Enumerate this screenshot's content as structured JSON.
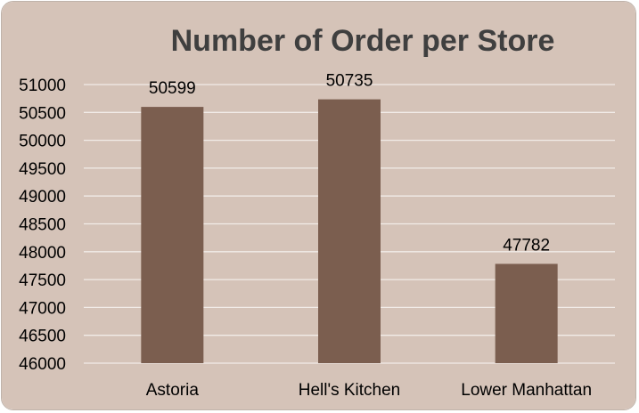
{
  "colors": {
    "background": "#d5c3b8",
    "bar": "#7b5e4f",
    "gridline": "#f2ece8",
    "text": "#000000",
    "title": "#3f3f3f"
  },
  "chart_data": {
    "type": "bar",
    "title": "Number of Order per Store",
    "categories": [
      "Astoria",
      "Hell's Kitchen",
      "Lower Manhattan"
    ],
    "values": [
      50599,
      50735,
      47782
    ],
    "data_labels": [
      "50599",
      "50735",
      "47782"
    ],
    "xlabel": "",
    "ylabel": "",
    "ylim": [
      46000,
      51000
    ],
    "yticks": [
      46000,
      46500,
      47000,
      47500,
      48000,
      48500,
      49000,
      49500,
      50000,
      50500,
      51000
    ],
    "ytick_labels": [
      "46000",
      "46500",
      "47000",
      "47500",
      "48000",
      "48500",
      "49000",
      "49500",
      "50000",
      "50500",
      "51000"
    ],
    "grid": true,
    "legend": "none"
  }
}
